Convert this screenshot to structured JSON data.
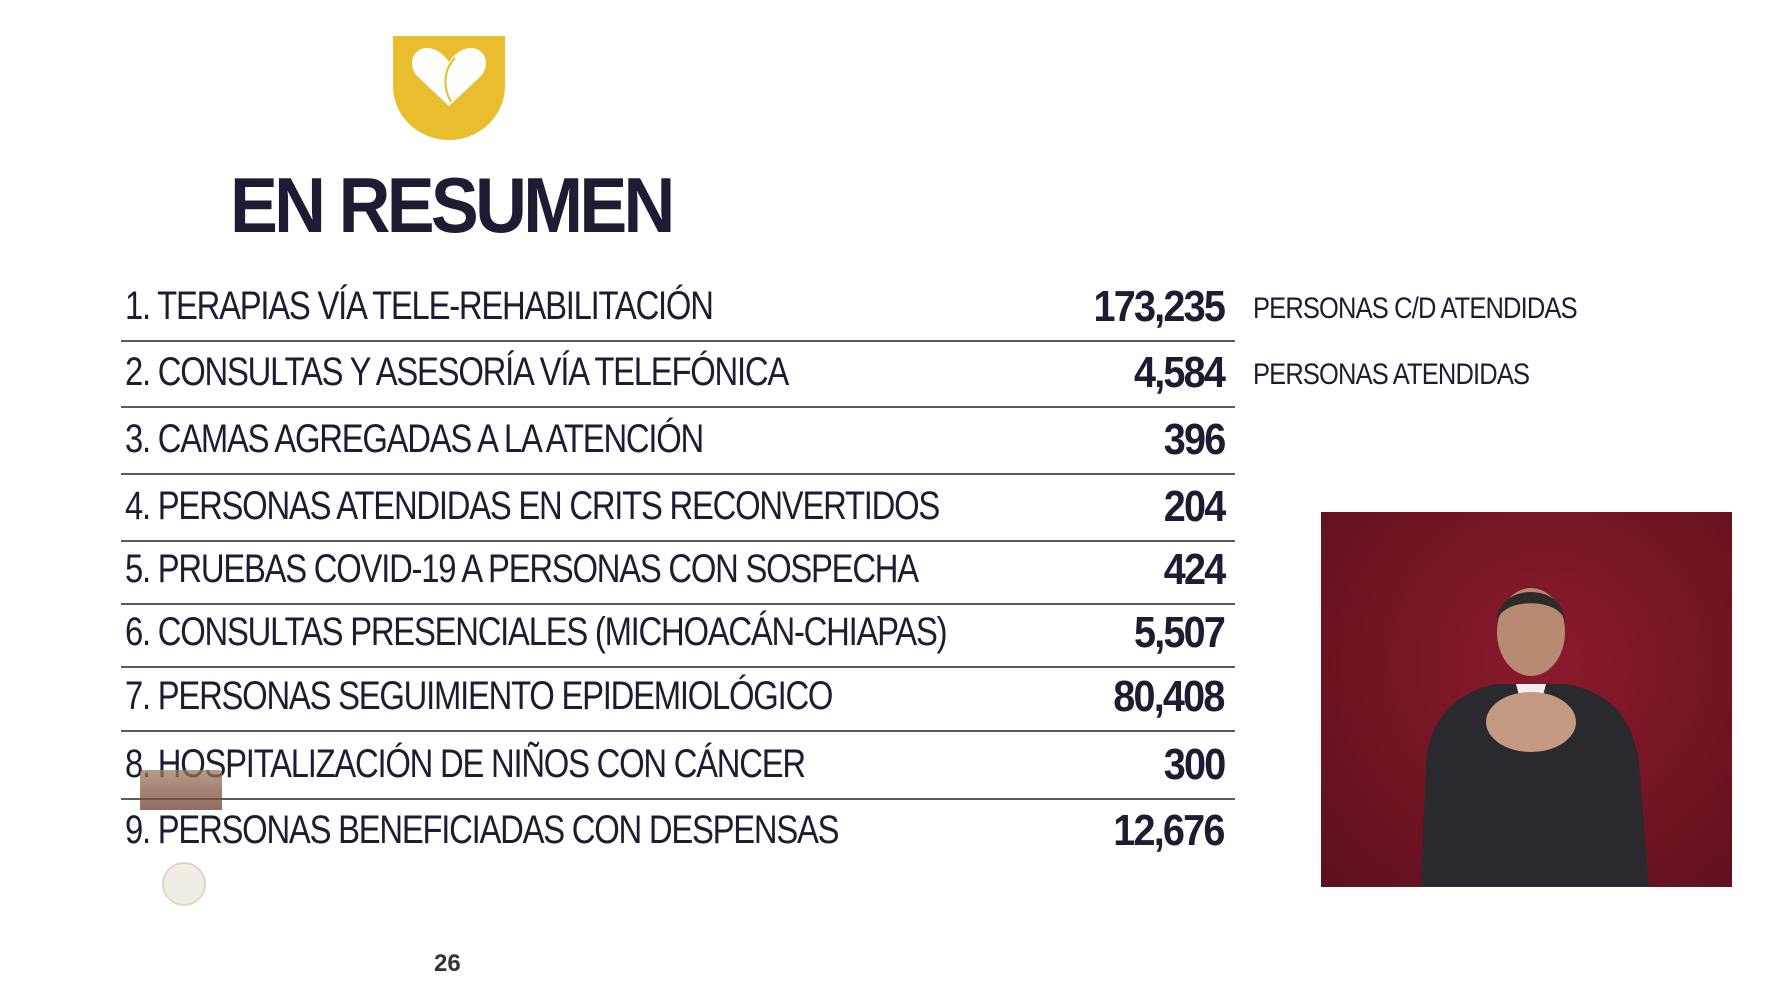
{
  "header": {
    "title": "EN RESUMEN",
    "logo": "heart-hands-shield-icon",
    "logo_color": "#e9bd2d"
  },
  "rows": [
    {
      "label": "1. TERAPIAS VÍA TELE-REHABILITACIÓN",
      "value": "173,235",
      "unit": "PERSONAS C/D ATENDIDAS"
    },
    {
      "label": "2. CONSULTAS Y ASESORÍA VÍA TELEFÓNICA",
      "value": "4,584",
      "unit": "PERSONAS ATENDIDAS"
    },
    {
      "label": "3. CAMAS AGREGADAS A LA ATENCIÓN",
      "value": "396"
    },
    {
      "label": "4. PERSONAS ATENDIDAS EN CRITS RECONVERTIDOS",
      "value": "204"
    },
    {
      "label": "5. PRUEBAS COVID-19 A PERSONAS CON SOSPECHA",
      "value": "424"
    },
    {
      "label": "6. CONSULTAS PRESENCIALES (MICHOACÁN-CHIAPAS)",
      "value": "5,507"
    },
    {
      "label": "7. PERSONAS SEGUIMIENTO EPIDEMIOLÓGICO",
      "value": "80,408"
    },
    {
      "label": "8. HOSPITALIZACIÓN DE NIÑOS CON CÁNCER",
      "value": "300"
    },
    {
      "label": "9. PERSONAS BENEFICIADAS CON DESPENSAS",
      "value": "12,676"
    }
  ],
  "footer": {
    "page_number": "26"
  },
  "colors": {
    "text": "#1f1b33",
    "video_bg": "#701424"
  }
}
